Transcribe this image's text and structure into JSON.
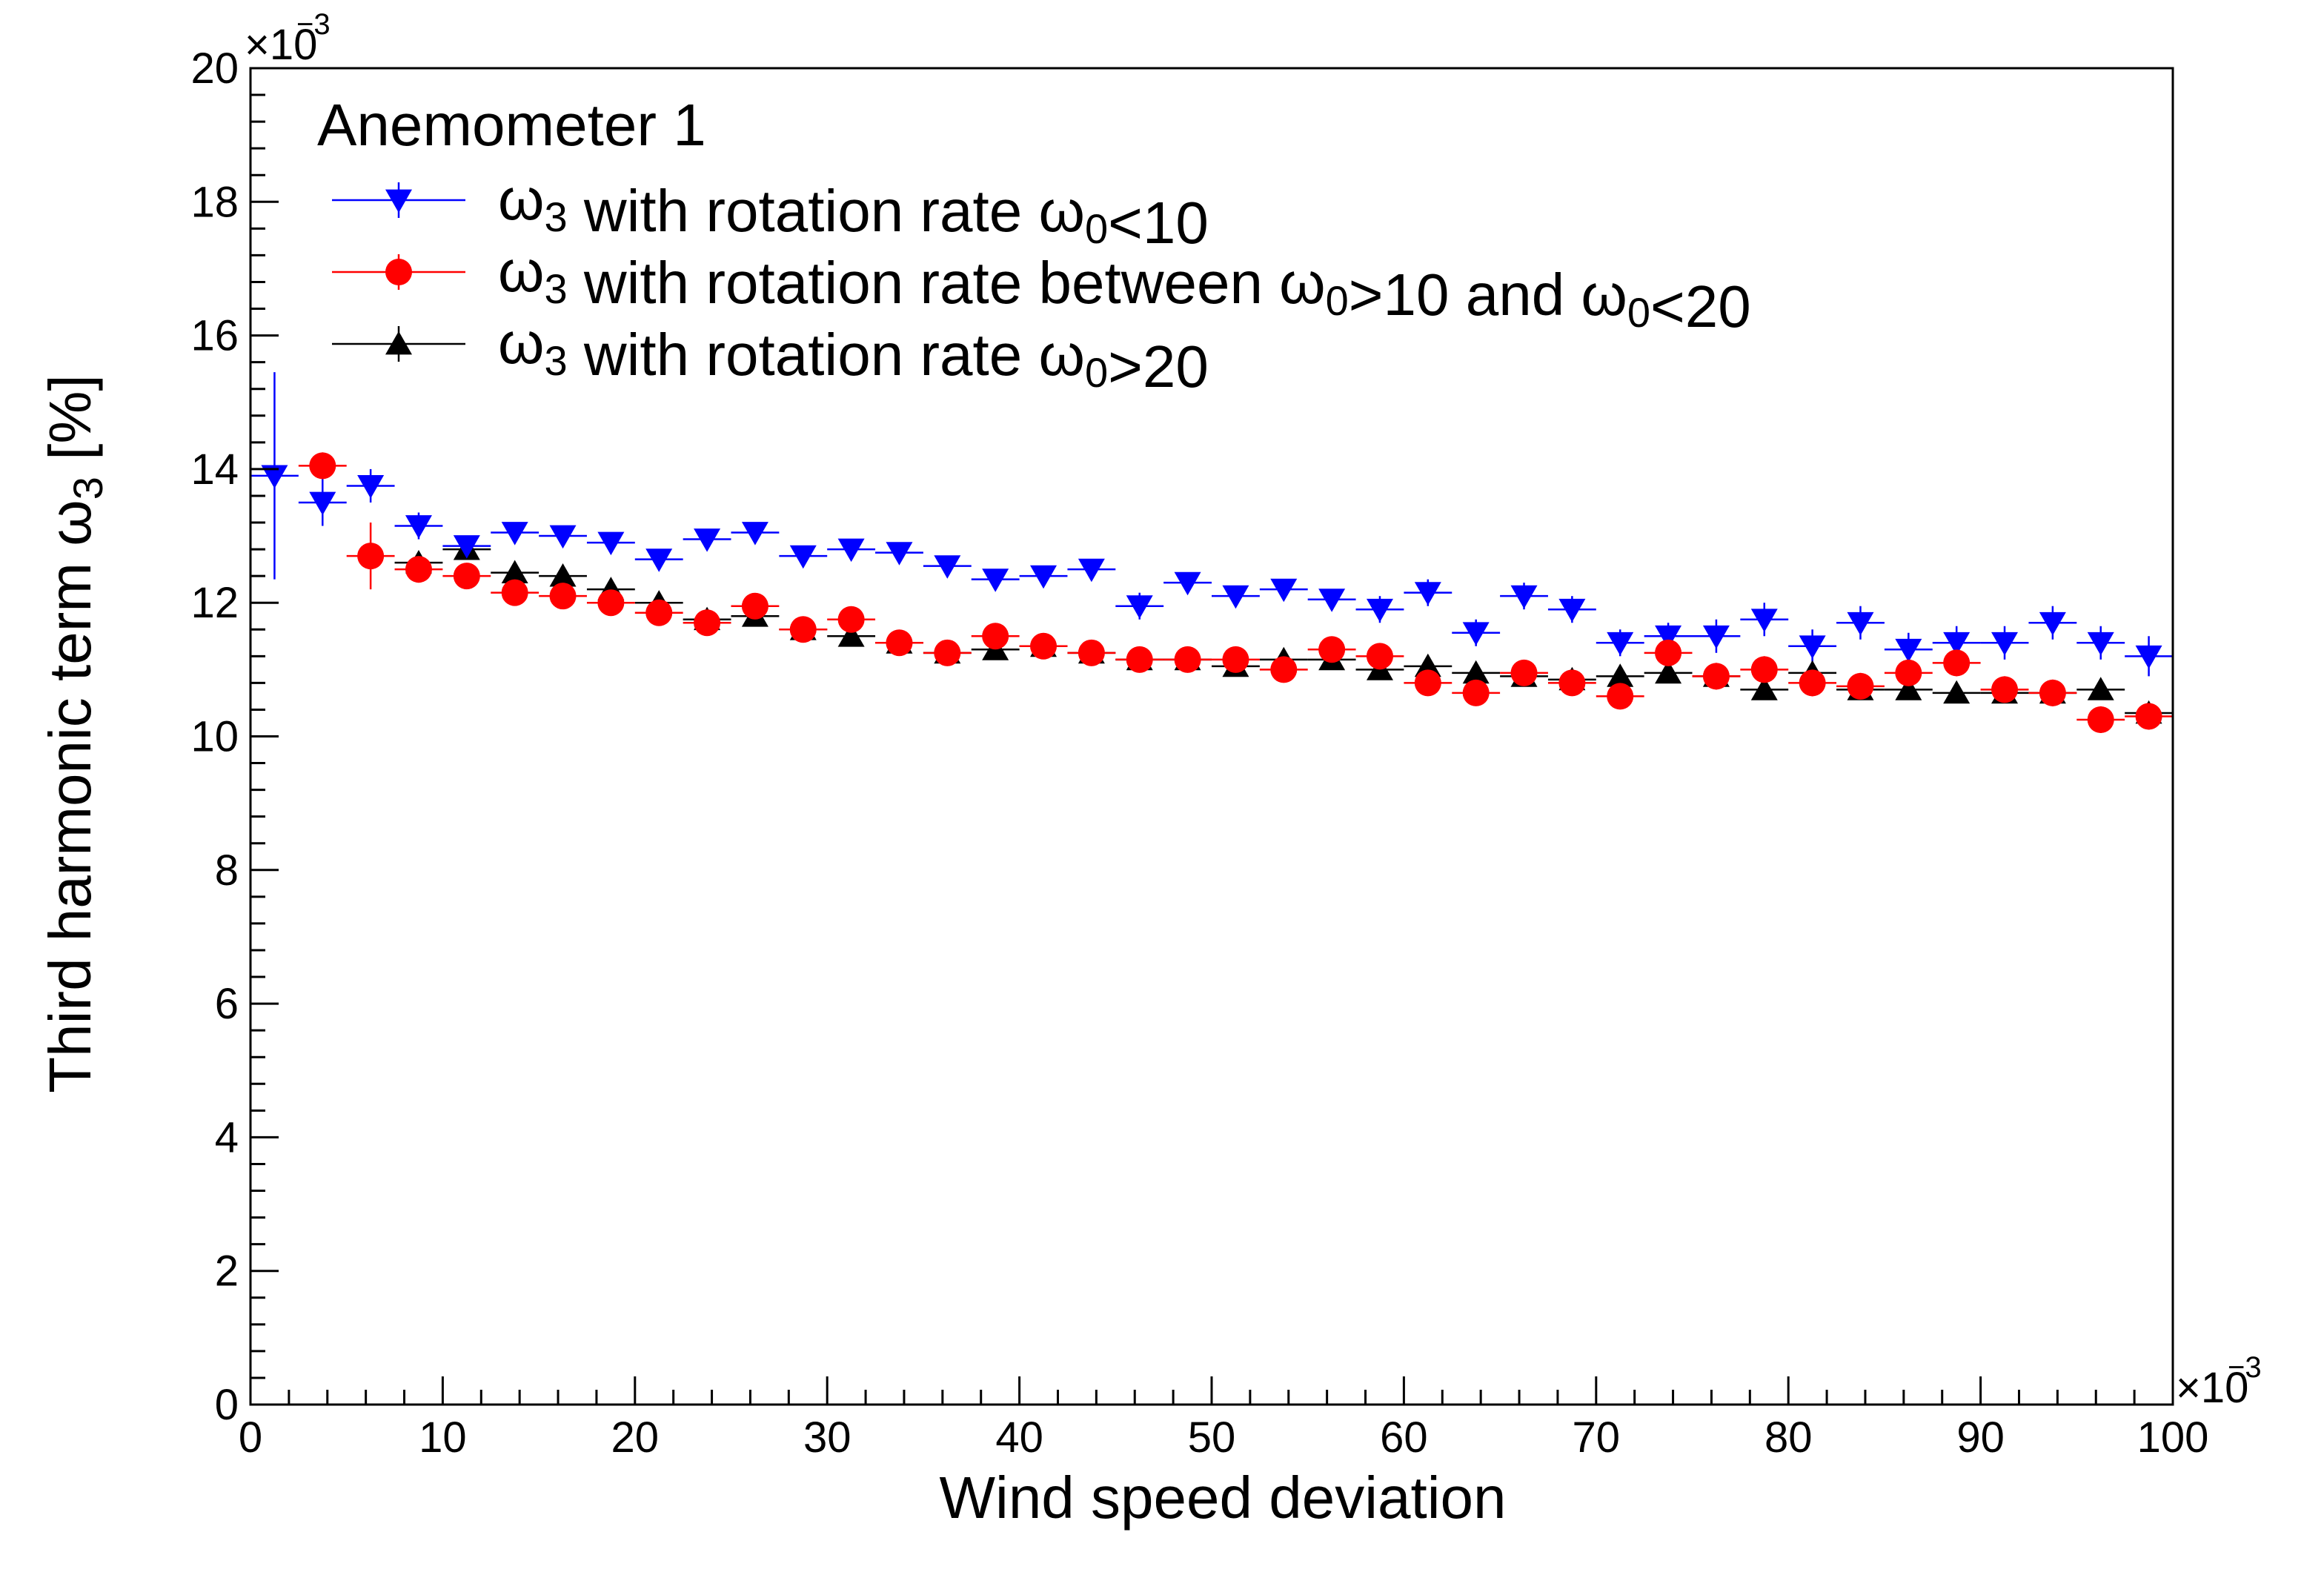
{
  "chart_data": {
    "type": "scatter",
    "title": "",
    "xlabel": "Wind speed deviation",
    "ylabel": "Third harmonic term ω3 [%]",
    "ylabel_parts": {
      "main": "Third harmonic term ω",
      "sub": "3",
      "tail": " [%]"
    },
    "x_multiplier": "×10",
    "x_multiplier_exp": "−3",
    "y_multiplier": "×10",
    "y_multiplier_exp": "−3",
    "xlim": [
      0,
      100
    ],
    "ylim": [
      0,
      20
    ],
    "x_ticks": [
      0,
      10,
      20,
      30,
      40,
      50,
      60,
      70,
      80,
      90,
      100
    ],
    "y_ticks": [
      0,
      2,
      4,
      6,
      8,
      10,
      12,
      14,
      16,
      18,
      20
    ],
    "x_bin_half_width": 1.25,
    "grid": false,
    "legend_position": "top-left",
    "legend_title": "Anemometer 1",
    "series": [
      {
        "name": "ω3 with rotation rate ω0<10",
        "label_parts": [
          {
            "t": "ω"
          },
          {
            "sub": "3"
          },
          {
            "t": " with rotation rate ω"
          },
          {
            "sub": "0"
          },
          {
            "t": "<10"
          }
        ],
        "color": "#0000ff",
        "marker": "triangle-down",
        "x": [
          1.25,
          3.75,
          6.25,
          8.75,
          11.25,
          13.75,
          16.25,
          18.75,
          21.25,
          23.75,
          26.25,
          28.75,
          31.25,
          33.75,
          36.25,
          38.75,
          41.25,
          43.75,
          46.25,
          48.75,
          51.25,
          53.75,
          56.25,
          58.75,
          61.25,
          63.75,
          66.25,
          68.75,
          71.25,
          73.75,
          76.25,
          78.75,
          81.25,
          83.75,
          86.25,
          88.75,
          91.25,
          93.75,
          96.25,
          98.75
        ],
        "y": [
          13.9,
          13.5,
          13.75,
          13.15,
          12.85,
          13.05,
          13.0,
          12.9,
          12.65,
          12.95,
          13.05,
          12.7,
          12.8,
          12.75,
          12.55,
          12.35,
          12.4,
          12.5,
          11.95,
          12.3,
          12.1,
          12.2,
          12.05,
          11.9,
          12.15,
          11.55,
          12.1,
          11.9,
          11.4,
          11.5,
          11.5,
          11.75,
          11.35,
          11.7,
          11.3,
          11.4,
          11.4,
          11.7,
          11.4,
          11.2
        ],
        "yerr": [
          1.55,
          0.35,
          0.25,
          0.2,
          0.15,
          0.15,
          0.15,
          0.15,
          0.15,
          0.15,
          0.15,
          0.15,
          0.15,
          0.15,
          0.15,
          0.15,
          0.15,
          0.15,
          0.2,
          0.15,
          0.15,
          0.15,
          0.15,
          0.2,
          0.2,
          0.2,
          0.2,
          0.2,
          0.2,
          0.2,
          0.25,
          0.25,
          0.25,
          0.25,
          0.25,
          0.25,
          0.25,
          0.25,
          0.25,
          0.3
        ]
      },
      {
        "name": "ω3 with rotation rate between ω0>10 and ω0<20",
        "label_parts": [
          {
            "t": "ω"
          },
          {
            "sub": "3"
          },
          {
            "t": " with rotation rate between ω"
          },
          {
            "sub": "0"
          },
          {
            "t": ">10 and ω"
          },
          {
            "sub": "0"
          },
          {
            "t": "<20"
          }
        ],
        "color": "#ff0000",
        "marker": "circle",
        "x": [
          3.75,
          6.25,
          8.75,
          11.25,
          13.75,
          16.25,
          18.75,
          21.25,
          23.75,
          26.25,
          28.75,
          31.25,
          33.75,
          36.25,
          38.75,
          41.25,
          43.75,
          46.25,
          48.75,
          51.25,
          53.75,
          56.25,
          58.75,
          61.25,
          63.75,
          66.25,
          68.75,
          71.25,
          73.75,
          76.25,
          78.75,
          81.25,
          83.75,
          86.25,
          88.75,
          91.25,
          93.75,
          96.25,
          98.75
        ],
        "y": [
          14.05,
          12.7,
          12.5,
          12.4,
          12.15,
          12.1,
          12.0,
          11.85,
          11.7,
          11.95,
          11.6,
          11.75,
          11.4,
          11.25,
          11.5,
          11.35,
          11.25,
          11.15,
          11.15,
          11.15,
          11.0,
          11.3,
          11.2,
          10.8,
          10.65,
          10.95,
          10.8,
          10.6,
          11.25,
          10.9,
          11.0,
          10.8,
          10.75,
          10.95,
          11.1,
          10.7,
          10.65,
          10.25,
          10.3
        ],
        "yerr": [
          0.2,
          0.5,
          0.2,
          0.15,
          0.15,
          0.15,
          0.15,
          0.15,
          0.15,
          0.15,
          0.15,
          0.15,
          0.15,
          0.15,
          0.15,
          0.15,
          0.15,
          0.15,
          0.15,
          0.15,
          0.15,
          0.15,
          0.15,
          0.15,
          0.15,
          0.15,
          0.15,
          0.15,
          0.2,
          0.2,
          0.2,
          0.2,
          0.2,
          0.2,
          0.2,
          0.2,
          0.2,
          0.2,
          0.2
        ]
      },
      {
        "name": "ω3 with rotation rate ω0>20",
        "label_parts": [
          {
            "t": "ω"
          },
          {
            "sub": "3"
          },
          {
            "t": " with rotation rate ω"
          },
          {
            "sub": "0"
          },
          {
            "t": ">20"
          }
        ],
        "color": "#000000",
        "marker": "triangle-up",
        "x": [
          8.75,
          11.25,
          13.75,
          16.25,
          18.75,
          21.25,
          23.75,
          26.25,
          28.75,
          31.25,
          33.75,
          36.25,
          38.75,
          41.25,
          43.75,
          46.25,
          48.75,
          51.25,
          53.75,
          56.25,
          58.75,
          61.25,
          63.75,
          66.25,
          68.75,
          71.25,
          73.75,
          76.25,
          78.75,
          81.25,
          83.75,
          86.25,
          88.75,
          91.25,
          93.75,
          96.25,
          98.75
        ],
        "y": [
          12.6,
          12.8,
          12.45,
          12.4,
          12.2,
          12.0,
          11.75,
          11.8,
          11.6,
          11.5,
          11.4,
          11.25,
          11.3,
          11.35,
          11.25,
          11.15,
          11.15,
          11.05,
          11.15,
          11.15,
          11.0,
          11.05,
          10.95,
          10.9,
          10.85,
          10.9,
          10.95,
          10.9,
          10.7,
          10.95,
          10.7,
          10.7,
          10.65,
          10.65,
          10.65,
          10.7,
          10.35
        ],
        "yerr": [
          0.15,
          0.15,
          0.15,
          0.15,
          0.15,
          0.15,
          0.15,
          0.15,
          0.15,
          0.15,
          0.15,
          0.15,
          0.15,
          0.15,
          0.15,
          0.15,
          0.15,
          0.15,
          0.15,
          0.15,
          0.15,
          0.15,
          0.15,
          0.15,
          0.15,
          0.15,
          0.15,
          0.15,
          0.15,
          0.15,
          0.15,
          0.15,
          0.15,
          0.15,
          0.15,
          0.15,
          0.15
        ]
      }
    ]
  }
}
